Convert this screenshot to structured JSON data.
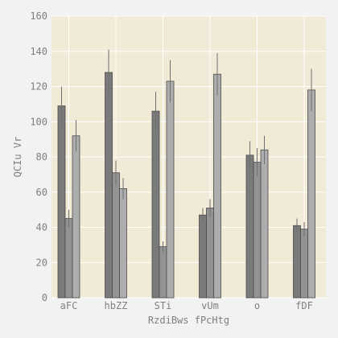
{
  "chart_data": {
    "type": "bar",
    "title": "",
    "xlabel": "RzdiBws fPcHtg",
    "ylabel": "QCIu Vr",
    "categories": [
      "aFC",
      "hbZZ",
      "STi",
      "vUm",
      "o",
      "fDF"
    ],
    "ylim": [
      0,
      160
    ],
    "yticks": [
      0,
      20,
      40,
      60,
      80,
      100,
      120,
      140,
      160
    ],
    "grid": true,
    "legend": "none",
    "series": [
      {
        "values": [
          109,
          128,
          106,
          47,
          81,
          41
        ],
        "errors": [
          11,
          13,
          11,
          4,
          8,
          4
        ],
        "color": "#7a7a7a"
      },
      {
        "values": [
          45,
          71,
          29,
          51,
          77,
          39
        ],
        "errors": [
          5,
          7,
          3,
          5,
          8,
          4
        ],
        "color": "#939393"
      },
      {
        "values": [
          92,
          62,
          123,
          127,
          84,
          118
        ],
        "errors": [
          9,
          6,
          12,
          12,
          8,
          12
        ],
        "color": "#adadad"
      }
    ],
    "colors": {
      "plot_background": "#f1ead7",
      "page_background": "#f2f2f2",
      "grid": "#ffffff",
      "bar_edge": "#4a4a4a",
      "error_bar": "#6f6f6f",
      "text": "#7f7f7f"
    }
  }
}
